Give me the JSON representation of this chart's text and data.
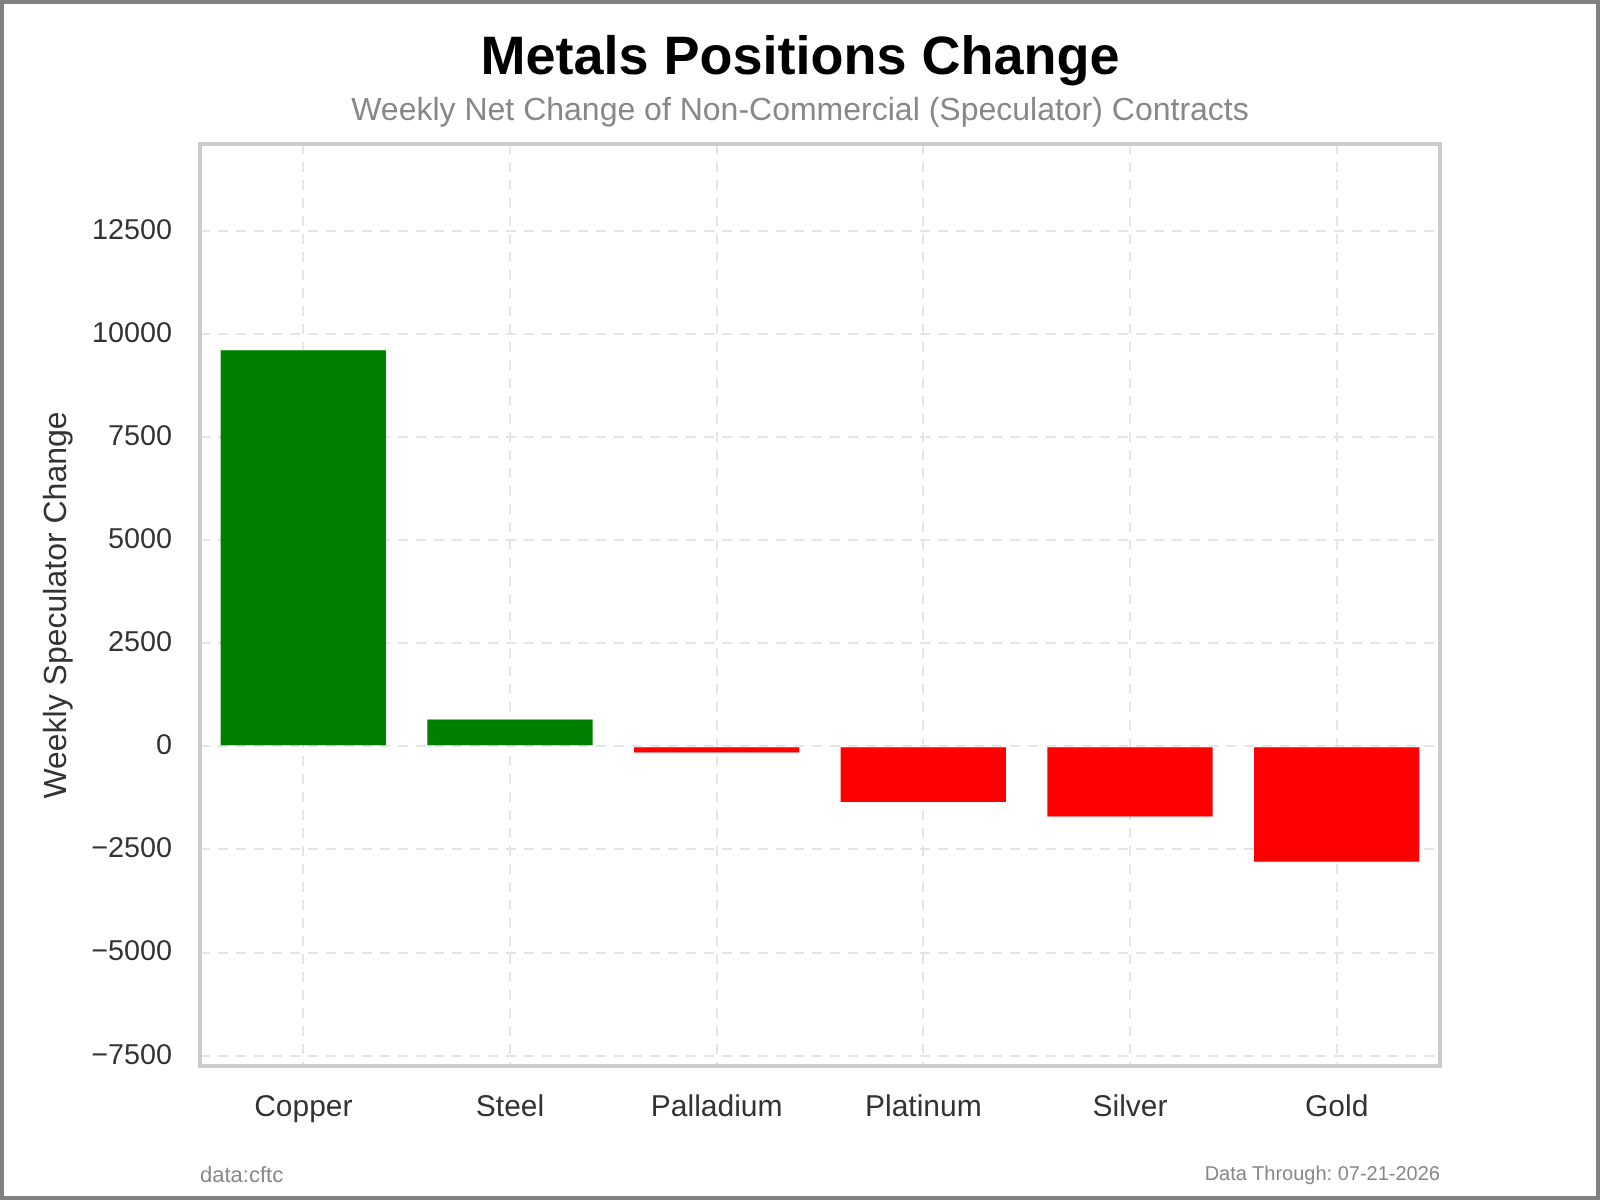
{
  "chart_data": {
    "type": "bar",
    "title": "Metals Positions Change",
    "subtitle": "Weekly Net Change of Non-Commercial (Speculator) Contracts",
    "ylabel": "Weekly Speculator Change",
    "categories": [
      "Copper",
      "Steel",
      "Palladium",
      "Platinum",
      "Silver",
      "Gold"
    ],
    "values": [
      9600,
      650,
      -150,
      -1350,
      -1700,
      -2800
    ],
    "colors": [
      "#008000",
      "#008000",
      "#ff0000",
      "#ff0000",
      "#ff0000",
      "#ff0000"
    ],
    "ylim": [
      -7750,
      14600
    ],
    "yticks": [
      -7500,
      -5000,
      -2500,
      0,
      2500,
      5000,
      7500,
      10000,
      12500
    ],
    "grid": true,
    "annotations": [
      "data:cftc",
      "Data Through: 07-21-2026"
    ]
  }
}
